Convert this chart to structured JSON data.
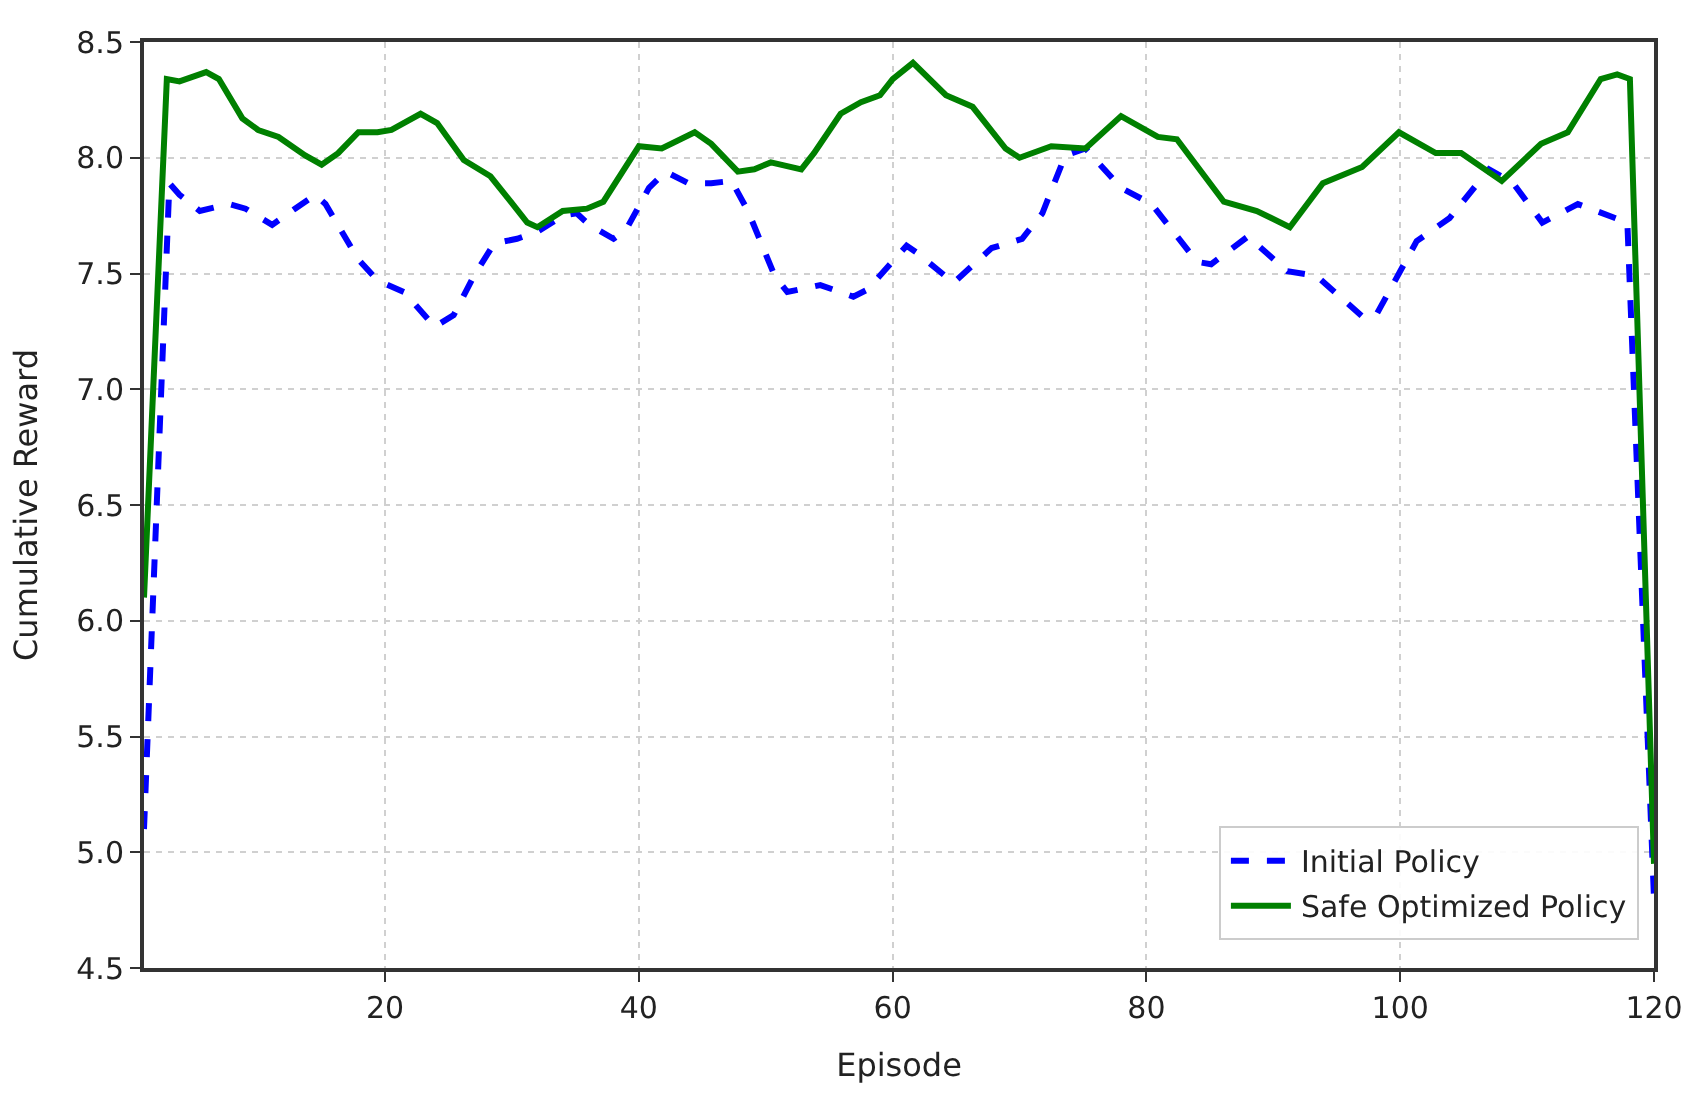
{
  "chart_data": {
    "type": "line",
    "xlabel": "Episode",
    "ylabel": "Cumulative Reward",
    "xlim": [
      1,
      120
    ],
    "xticks": [
      20,
      40,
      60,
      80,
      100,
      120
    ],
    "ylim": [
      4.5,
      8.5
    ],
    "yticks": [
      4.5,
      {
        "value": 5,
        "label": "5.0"
      },
      5.5,
      {
        "value": 6,
        "label": "6.0"
      },
      6.5,
      {
        "value": 7,
        "label": "7.0"
      },
      7.5,
      {
        "value": 8,
        "label": "8.0"
      },
      8.5
    ],
    "grid": true,
    "legend": "bottom right",
    "marker": "none",
    "series": [
      {
        "name": "Initial Policy",
        "color": "#0000ff",
        "line_style": "dashed",
        "x": [
          1,
          3.0,
          3.8,
          5.4,
          7.7,
          9.0,
          11.1,
          12.9,
          14.5,
          15.3,
          17.9,
          19.4,
          21.5,
          23.9,
          25.4,
          27.0,
          28.6,
          30.4,
          32.0,
          34.0,
          35.1,
          36.1,
          38.0,
          39.0,
          40.8,
          42.1,
          43.9,
          45.7,
          47.3,
          48.6,
          50.7,
          51.7,
          54.3,
          56.9,
          58.0,
          61.1,
          61.9,
          64.8,
          67.8,
          70.2,
          71.8,
          73.6,
          75.2,
          78.0,
          80.4,
          84.0,
          85.1,
          88.0,
          91.1,
          93.4,
          97.1,
          98.1,
          101.3,
          103.9,
          107.0,
          108.9,
          111.2,
          114.0,
          117.9,
          120
        ],
        "values": [
          5.1,
          7.89,
          7.84,
          7.77,
          7.8,
          7.78,
          7.71,
          7.78,
          7.84,
          7.8,
          7.56,
          7.47,
          7.42,
          7.27,
          7.32,
          7.49,
          7.63,
          7.65,
          7.68,
          7.75,
          7.76,
          7.71,
          7.65,
          7.69,
          7.87,
          7.94,
          7.89,
          7.89,
          7.9,
          7.77,
          7.49,
          7.42,
          7.45,
          7.4,
          7.43,
          7.62,
          7.59,
          7.46,
          7.61,
          7.65,
          7.76,
          8.01,
          8.04,
          7.87,
          7.8,
          7.55,
          7.54,
          7.66,
          7.51,
          7.49,
          7.31,
          7.32,
          7.64,
          7.74,
          7.95,
          7.89,
          7.72,
          7.8,
          7.72,
          4.8
        ]
      },
      {
        "name": "Safe Optimized Policy",
        "color": "#008000",
        "line_style": "solid",
        "x": [
          1,
          2.8,
          3.8,
          5.9,
          6.9,
          8.75,
          10.0,
          11.6,
          13.7,
          15.0,
          16.3,
          17.9,
          19.4,
          20.5,
          22.8,
          24.1,
          26.2,
          28.3,
          29.9,
          31.2,
          32.0,
          34.0,
          35.9,
          37.2,
          40.0,
          41.8,
          44.4,
          45.7,
          47.8,
          49.1,
          50.4,
          52.8,
          53.8,
          55.9,
          57.5,
          59.0,
          60.0,
          61.6,
          64.2,
          66.3,
          68.9,
          70.0,
          72.5,
          75.2,
          78.0,
          80.9,
          82.4,
          86.1,
          88.7,
          91.3,
          93.9,
          97.0,
          99.9,
          102.8,
          104.8,
          108.0,
          111.1,
          113.2,
          115.8,
          117.1,
          118.1,
          120
        ],
        "values": [
          6.1,
          8.34,
          8.33,
          8.37,
          8.34,
          8.17,
          8.12,
          8.09,
          8.01,
          7.97,
          8.02,
          8.11,
          8.11,
          8.12,
          8.19,
          8.15,
          7.99,
          7.92,
          7.81,
          7.72,
          7.7,
          7.77,
          7.78,
          7.81,
          8.05,
          8.04,
          8.11,
          8.06,
          7.94,
          7.95,
          7.98,
          7.95,
          8.02,
          8.19,
          8.24,
          8.27,
          8.34,
          8.41,
          8.27,
          8.22,
          8.04,
          8.0,
          8.05,
          8.04,
          8.18,
          8.09,
          8.08,
          7.81,
          7.77,
          7.7,
          7.89,
          7.96,
          8.11,
          8.02,
          8.02,
          7.9,
          8.06,
          8.11,
          8.34,
          8.36,
          8.34,
          4.95
        ]
      }
    ]
  }
}
